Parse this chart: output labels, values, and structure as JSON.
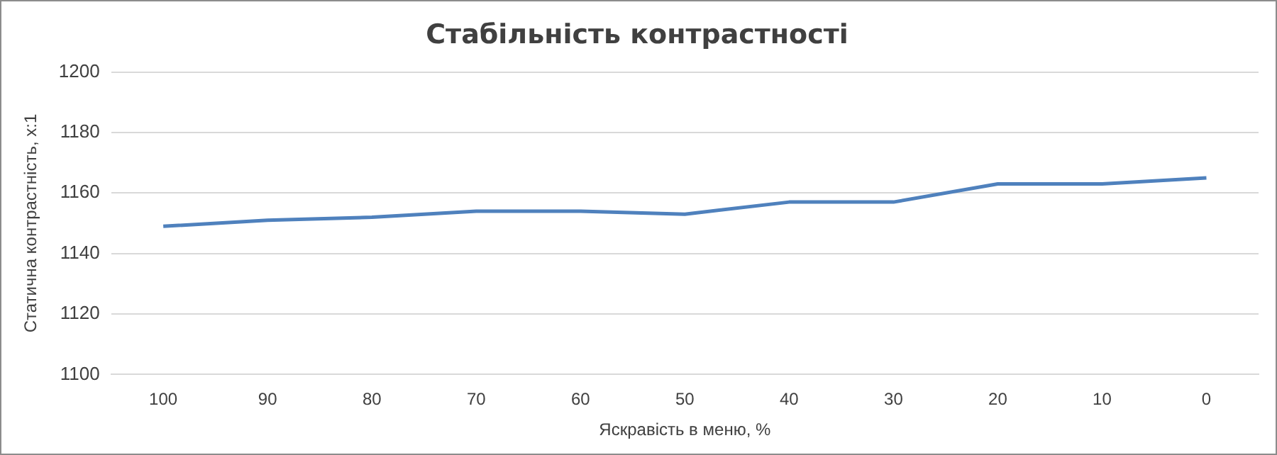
{
  "chart_data": {
    "type": "line",
    "title": "Стабільність контрастності",
    "xlabel": "Яскравість в меню, %",
    "ylabel": "Статична контрастність, x:1",
    "categories": [
      "100",
      "90",
      "80",
      "70",
      "60",
      "50",
      "40",
      "30",
      "20",
      "10",
      "0"
    ],
    "series": [
      {
        "color": "#4f81bd",
        "values": [
          1149,
          1151,
          1152,
          1154,
          1154,
          1153,
          1157,
          1157,
          1163,
          1163,
          1165
        ]
      }
    ],
    "ylim": [
      1100,
      1200
    ],
    "yticks": [
      1100,
      1120,
      1140,
      1160,
      1180,
      1200
    ],
    "grid": "y",
    "legend": false,
    "marker": "none",
    "line_style": "solid"
  }
}
